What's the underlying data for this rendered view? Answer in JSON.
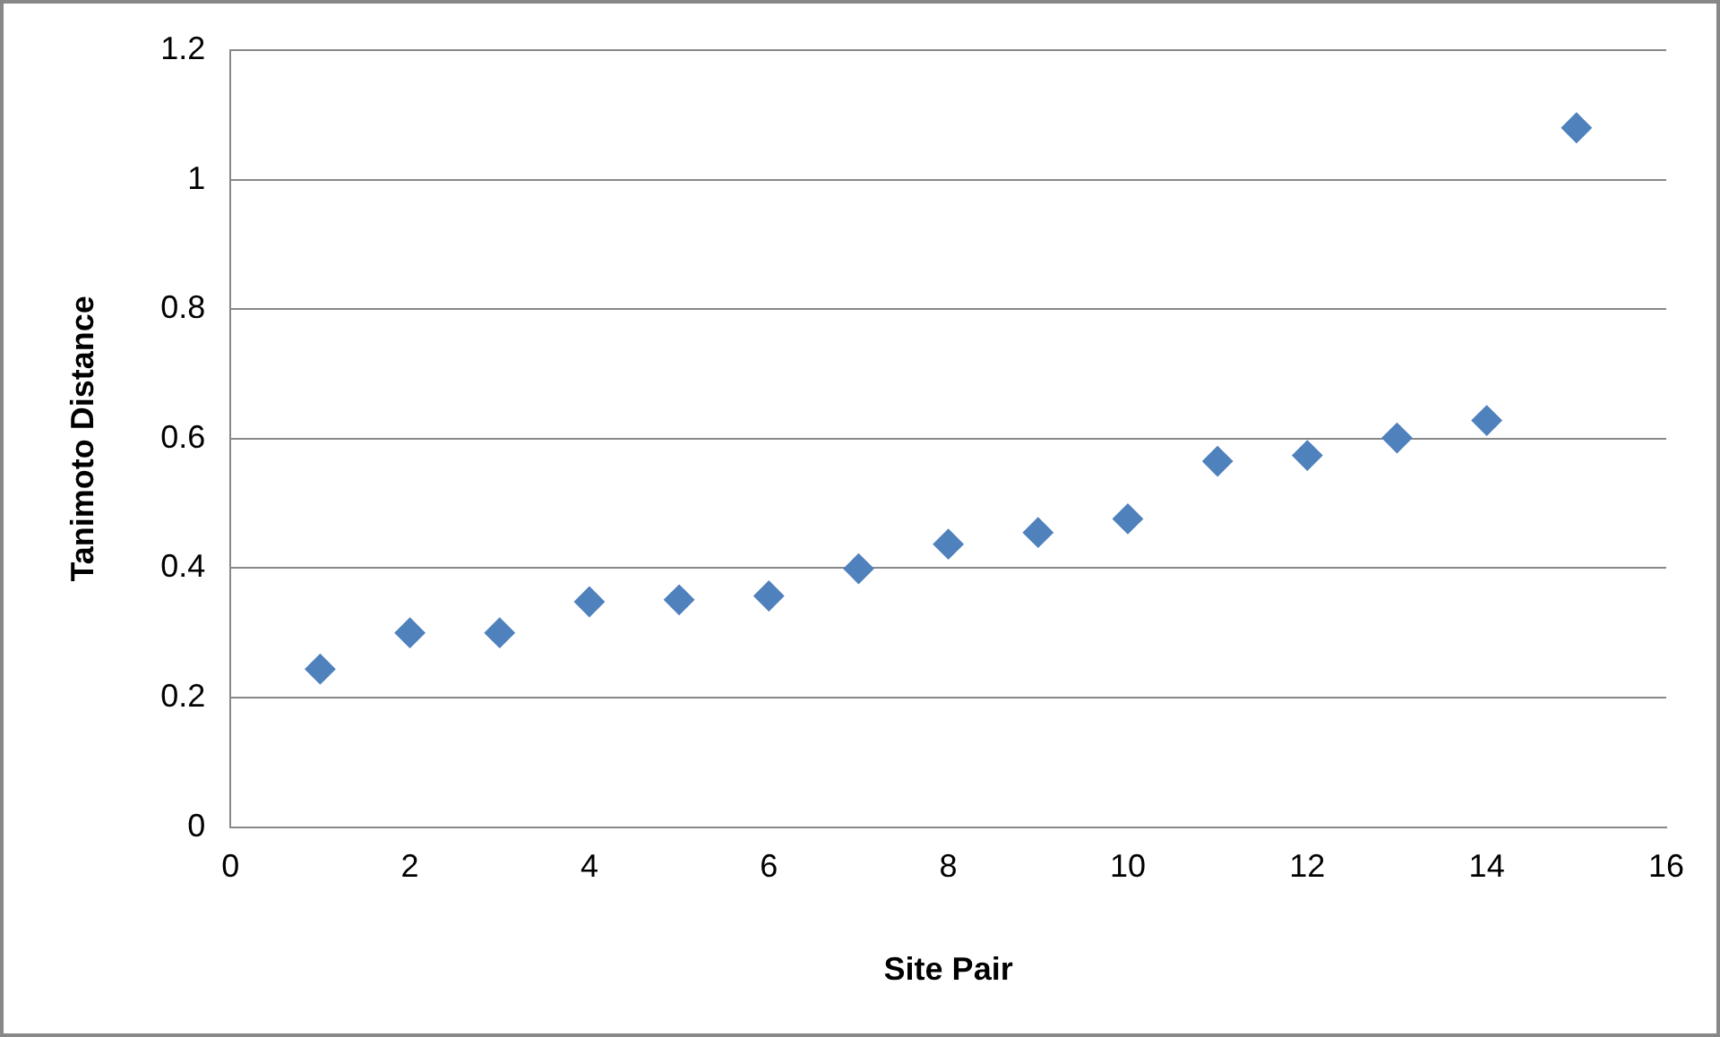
{
  "chart_data": {
    "type": "scatter",
    "xlabel": "Site Pair",
    "ylabel": "Tanimoto Distance",
    "x": [
      1,
      2,
      3,
      4,
      5,
      6,
      7,
      8,
      9,
      10,
      11,
      12,
      13,
      14,
      15
    ],
    "series": [
      {
        "color": "#4f81bd",
        "values": [
          0.244,
          0.3,
          0.3,
          0.348,
          0.351,
          0.357,
          0.399,
          0.437,
          0.455,
          0.476,
          0.565,
          0.574,
          0.601,
          0.628,
          1.08
        ]
      }
    ],
    "xlim": [
      0,
      16
    ],
    "xticks": [
      0,
      2,
      4,
      6,
      8,
      10,
      12,
      14,
      16
    ],
    "ylim": [
      0,
      1.2
    ],
    "yticks": [
      0,
      0.2,
      0.4,
      0.6,
      0.8,
      1,
      1.2
    ],
    "grid": "y",
    "legend": false,
    "marker": "diamond"
  }
}
